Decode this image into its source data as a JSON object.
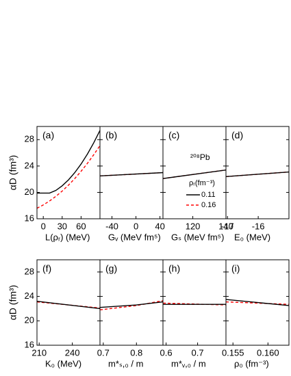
{
  "chart_data": [
    {
      "type": "line",
      "panel_label": "(a)",
      "x_label": "L(ρᵣ) (MeV)",
      "y_label": "αD (fm³)",
      "xlim": [
        -10,
        90
      ],
      "xticks": [
        0,
        30,
        60
      ],
      "ylim": [
        16,
        30
      ],
      "yticks": [
        16,
        20,
        24,
        28
      ],
      "x": [
        -10,
        0,
        10,
        20,
        30,
        40,
        50,
        60,
        70,
        80,
        90
      ],
      "series": [
        {
          "color": "#ff0000",
          "dash": true,
          "values": [
            17.6,
            18.1,
            18.7,
            19.4,
            20.2,
            21.1,
            22.1,
            23.2,
            24.4,
            25.7,
            27.1
          ]
        },
        {
          "color": "#000000",
          "dash": false,
          "values": [
            19.9,
            19.9,
            19.9,
            20.3,
            21.0,
            21.9,
            23.0,
            24.3,
            25.8,
            27.5,
            29.4
          ]
        }
      ]
    },
    {
      "type": "line",
      "panel_label": "(b)",
      "x_label": "Gᵥ (MeV fm⁵)",
      "xlim": [
        -60,
        45
      ],
      "xticks": [
        -40,
        0,
        40
      ],
      "ylim": [
        16,
        30
      ],
      "yticks": [
        16,
        20,
        24,
        28
      ],
      "x": [
        -60,
        45
      ],
      "series": [
        {
          "color": "#ff0000",
          "dash": true,
          "values": [
            22.5,
            23.0
          ]
        },
        {
          "color": "#000000",
          "dash": false,
          "values": [
            22.5,
            23.0
          ]
        }
      ]
    },
    {
      "type": "line",
      "panel_label": "(c)",
      "x_label": "Gₛ (MeV fm⁵)",
      "annotation": "²⁰⁸Pb",
      "legend": true,
      "legend_title": "ρᵣ(fm⁻³)",
      "xlim": [
        102,
        140
      ],
      "xticks": [
        120,
        140
      ],
      "ylim": [
        16,
        30
      ],
      "yticks": [
        16,
        20,
        24,
        28
      ],
      "x": [
        102,
        140
      ],
      "series": [
        {
          "name": "0.16",
          "color": "#ff0000",
          "dash": true,
          "values": [
            22.1,
            23.4
          ]
        },
        {
          "name": "0.11",
          "color": "#000000",
          "dash": false,
          "values": [
            22.1,
            23.4
          ]
        }
      ]
    },
    {
      "type": "line",
      "panel_label": "(d)",
      "x_label": "E₀ (MeV)",
      "xlim": [
        -17.05,
        -15
      ],
      "xticks": [
        -17,
        -16
      ],
      "ylim": [
        16,
        30
      ],
      "yticks": [
        16,
        20,
        24,
        28
      ],
      "x": [
        -17.05,
        -15
      ],
      "series": [
        {
          "color": "#ff0000",
          "dash": true,
          "values": [
            22.4,
            23.1
          ]
        },
        {
          "color": "#000000",
          "dash": false,
          "values": [
            22.4,
            23.1
          ]
        }
      ]
    },
    {
      "type": "line",
      "panel_label": "(f)",
      "x_label": "K₀ (MeV)",
      "y_label": "αD (fm³)",
      "xlim": [
        208,
        265
      ],
      "xticks": [
        210,
        240
      ],
      "ylim": [
        16,
        30
      ],
      "yticks": [
        16,
        20,
        24,
        28
      ],
      "x": [
        208,
        265
      ],
      "series": [
        {
          "color": "#ff0000",
          "dash": true,
          "values": [
            23.1,
            22.1
          ]
        },
        {
          "color": "#000000",
          "dash": false,
          "values": [
            23.2,
            22.0
          ]
        }
      ]
    },
    {
      "type": "line",
      "panel_label": "(g)",
      "x_label": "m*ₛ,₀ / m",
      "xlim": [
        0.69,
        0.88
      ],
      "xticks": [
        0.7,
        0.8
      ],
      "ylim": [
        16,
        30
      ],
      "yticks": [
        16,
        20,
        24,
        28
      ],
      "x": [
        0.69,
        0.8,
        0.88
      ],
      "series": [
        {
          "color": "#ff0000",
          "dash": true,
          "values": [
            21.8,
            22.5,
            23.3
          ]
        },
        {
          "color": "#000000",
          "dash": false,
          "values": [
            22.2,
            22.6,
            23.1
          ]
        }
      ]
    },
    {
      "type": "line",
      "panel_label": "(h)",
      "x_label": "m*ᵥ,₀ / m",
      "xlim": [
        0.59,
        0.79
      ],
      "xticks": [
        0.6,
        0.7
      ],
      "ylim": [
        16,
        30
      ],
      "yticks": [
        16,
        20,
        24,
        28
      ],
      "x": [
        0.59,
        0.79
      ],
      "series": [
        {
          "color": "#ff0000",
          "dash": true,
          "values": [
            22.9,
            22.6
          ]
        },
        {
          "color": "#000000",
          "dash": false,
          "values": [
            22.7,
            22.7
          ]
        }
      ]
    },
    {
      "type": "line",
      "panel_label": "(i)",
      "x_label": "ρ₀ (fm⁻³)",
      "xlim": [
        0.154,
        0.163
      ],
      "xticks": [
        0.155,
        {
          "value": 0.16,
          "label": "0.160"
        }
      ],
      "ylim": [
        16,
        30
      ],
      "yticks": [
        16,
        20,
        24,
        28
      ],
      "x": [
        0.154,
        0.163
      ],
      "series": [
        {
          "color": "#ff0000",
          "dash": true,
          "values": [
            23.1,
            22.7
          ]
        },
        {
          "color": "#000000",
          "dash": false,
          "values": [
            23.5,
            22.5
          ]
        }
      ]
    }
  ]
}
